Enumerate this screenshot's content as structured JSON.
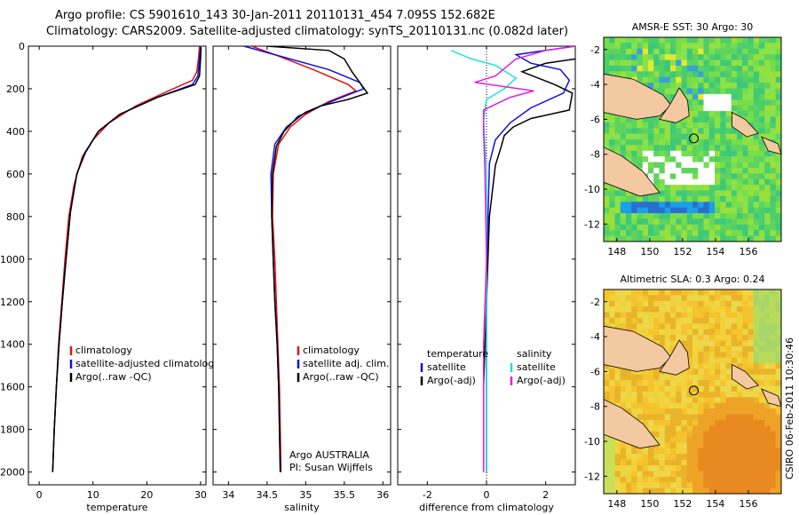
{
  "header": {
    "line1": "Argo profile: CS 5901610_143 30-Jan-2011 20110131_454 7.095S 152.682E",
    "line2": "Climatology: CARS2009. Satellite-adjusted climatology: synTS_20110131.nc (0.082d later)"
  },
  "side_note": "CSIRO 06-Feb-2011 10:30:46",
  "colors": {
    "climatology": "#e01010",
    "satellite": "#1010e0",
    "argo": "#000000",
    "sat_temp": "#20e0e0",
    "argo_adj_sal": "#e020e0"
  },
  "chart_data": [
    {
      "type": "line",
      "xlabel": "temperature",
      "xlim": [
        -2,
        31
      ],
      "xticks": [
        0,
        10,
        20,
        30
      ],
      "ylim": [
        0,
        2060
      ],
      "yticks": [
        0,
        200,
        400,
        600,
        800,
        1000,
        1200,
        1400,
        1600,
        1800,
        2000
      ],
      "legend": [
        "climatology",
        "satellite-adjusted climatology",
        "Argo(..raw -QC)"
      ],
      "series": [
        {
          "name": "climatology",
          "color": "#e01010",
          "points": [
            [
              29.8,
              0
            ],
            [
              29.6,
              60
            ],
            [
              29.3,
              120
            ],
            [
              28.5,
              160
            ],
            [
              24,
              210
            ],
            [
              18,
              280
            ],
            [
              13,
              360
            ],
            [
              10,
              440
            ],
            [
              8,
              520
            ],
            [
              6.5,
              650
            ],
            [
              5.5,
              800
            ],
            [
              4.8,
              1000
            ],
            [
              4.2,
              1200
            ],
            [
              3.6,
              1400
            ],
            [
              3.2,
              1600
            ],
            [
              2.8,
              1800
            ],
            [
              2.5,
              2000
            ]
          ]
        },
        {
          "name": "satellite-adjusted climatology",
          "color": "#1010e0",
          "points": [
            [
              30,
              0
            ],
            [
              29.8,
              60
            ],
            [
              29.5,
              140
            ],
            [
              28.5,
              180
            ],
            [
              22,
              240
            ],
            [
              15,
              320
            ],
            [
              11,
              400
            ],
            [
              8.5,
              500
            ],
            [
              7,
              600
            ],
            [
              5.8,
              780
            ],
            [
              5,
              1000
            ],
            [
              4.3,
              1200
            ],
            [
              3.7,
              1400
            ],
            [
              3.2,
              1600
            ],
            [
              2.8,
              1800
            ],
            [
              2.5,
              2000
            ]
          ]
        },
        {
          "name": "Argo(..raw -QC)",
          "color": "#000000",
          "points": [
            [
              30.1,
              5
            ],
            [
              30,
              60
            ],
            [
              29.8,
              140
            ],
            [
              29,
              180
            ],
            [
              22,
              240
            ],
            [
              15,
              320
            ],
            [
              11,
              400
            ],
            [
              8.6,
              500
            ],
            [
              7,
              600
            ],
            [
              5.8,
              780
            ],
            [
              5,
              1000
            ],
            [
              4.3,
              1200
            ],
            [
              3.7,
              1400
            ],
            [
              3.2,
              1600
            ],
            [
              2.8,
              1800
            ],
            [
              2.5,
              2000
            ]
          ]
        }
      ]
    },
    {
      "type": "line",
      "xlabel": "salinity",
      "xlim": [
        33.8,
        36.1
      ],
      "xticks": [
        34,
        34.5,
        35,
        35.5,
        36
      ],
      "ylim": [
        0,
        2060
      ],
      "yticks": [
        0,
        200,
        400,
        600,
        800,
        1000,
        1200,
        1400,
        1600,
        1800,
        2000
      ],
      "legend": [
        "climatology",
        "satellite adj. clim.",
        "Argo(..raw -QC)"
      ],
      "note_lines": [
        "Argo AUSTRALIA",
        "PI: Susan Wijffels"
      ],
      "series": [
        {
          "name": "climatology",
          "color": "#e01010",
          "points": [
            [
              34.3,
              0
            ],
            [
              34.6,
              40
            ],
            [
              35.1,
              110
            ],
            [
              35.55,
              180
            ],
            [
              35.65,
              210
            ],
            [
              35.3,
              260
            ],
            [
              35,
              320
            ],
            [
              34.8,
              380
            ],
            [
              34.65,
              460
            ],
            [
              34.58,
              600
            ],
            [
              34.57,
              800
            ],
            [
              34.6,
              1000
            ],
            [
              34.62,
              1200
            ],
            [
              34.64,
              1400
            ],
            [
              34.66,
              1600
            ],
            [
              34.67,
              1800
            ],
            [
              34.68,
              2000
            ]
          ]
        },
        {
          "name": "satellite adj. clim.",
          "color": "#1010e0",
          "points": [
            [
              34.2,
              0
            ],
            [
              34.6,
              40
            ],
            [
              35.3,
              110
            ],
            [
              35.7,
              170
            ],
            [
              35.75,
              200
            ],
            [
              35.4,
              250
            ],
            [
              35,
              310
            ],
            [
              34.75,
              380
            ],
            [
              34.6,
              460
            ],
            [
              34.55,
              600
            ],
            [
              34.56,
              800
            ],
            [
              34.58,
              1000
            ],
            [
              34.6,
              1200
            ],
            [
              34.63,
              1400
            ],
            [
              34.65,
              1600
            ],
            [
              34.66,
              1800
            ],
            [
              34.67,
              2000
            ]
          ]
        },
        {
          "name": "Argo(..raw -QC)",
          "color": "#000000",
          "points": [
            [
              34.5,
              0
            ],
            [
              35.3,
              20
            ],
            [
              35.5,
              60
            ],
            [
              35.6,
              120
            ],
            [
              35.7,
              170
            ],
            [
              35.8,
              220
            ],
            [
              35.55,
              250
            ],
            [
              35.2,
              280
            ],
            [
              34.9,
              330
            ],
            [
              34.72,
              400
            ],
            [
              34.62,
              470
            ],
            [
              34.57,
              600
            ],
            [
              34.56,
              800
            ],
            [
              34.58,
              1000
            ],
            [
              34.6,
              1200
            ],
            [
              34.63,
              1400
            ],
            [
              34.65,
              1600
            ],
            [
              34.66,
              1800
            ],
            [
              34.67,
              2000
            ]
          ]
        }
      ]
    },
    {
      "type": "line",
      "xlabel": "difference from climatology",
      "xlim": [
        -3,
        3
      ],
      "xticks": [
        -2,
        0,
        2
      ],
      "ylim": [
        0,
        2060
      ],
      "yticks": [
        0,
        200,
        400,
        600,
        800,
        1000,
        1200,
        1400,
        1600,
        1800,
        2000
      ],
      "legend": [
        "temperature",
        "satellite",
        "Argo(-adj)",
        "salinity",
        "satellite",
        "Argo(-adj)"
      ],
      "series": [
        {
          "name": "temperature satellite",
          "color": "#1010e0",
          "points": [
            [
              3,
              0
            ],
            [
              2,
              20
            ],
            [
              1,
              40
            ],
            [
              1.5,
              80
            ],
            [
              2.5,
              110
            ],
            [
              2.8,
              160
            ],
            [
              2.6,
              220
            ],
            [
              1.5,
              290
            ],
            [
              0.8,
              360
            ],
            [
              0.3,
              440
            ],
            [
              0.1,
              550
            ],
            [
              0.05,
              800
            ],
            [
              0,
              1200
            ],
            [
              0,
              2000
            ]
          ]
        },
        {
          "name": "temperature Argo(-adj)",
          "color": "#000000",
          "points": [
            [
              3,
              60
            ],
            [
              2,
              80
            ],
            [
              1.2,
              120
            ],
            [
              2.3,
              180
            ],
            [
              2.9,
              220
            ],
            [
              2.8,
              300
            ],
            [
              1.5,
              340
            ],
            [
              0.9,
              380
            ],
            [
              0.6,
              420
            ],
            [
              0.5,
              470
            ],
            [
              0.3,
              560
            ],
            [
              0.1,
              800
            ],
            [
              0,
              1200
            ],
            [
              -0.1,
              1600
            ],
            [
              -0.1,
              2000
            ]
          ]
        },
        {
          "name": "salinity satellite",
          "color": "#20e0e0",
          "points": [
            [
              -1.2,
              20
            ],
            [
              -0.5,
              60
            ],
            [
              0.3,
              90
            ],
            [
              1,
              150
            ],
            [
              0.6,
              200
            ],
            [
              0,
              250
            ],
            [
              -0.1,
              350
            ],
            [
              0,
              600
            ],
            [
              0,
              1000
            ],
            [
              0,
              1400
            ],
            [
              0,
              2000
            ]
          ]
        },
        {
          "name": "salinity Argo(-adj)",
          "color": "#e020e0",
          "points": [
            [
              3,
              0
            ],
            [
              2,
              20
            ],
            [
              1,
              60
            ],
            [
              0.3,
              140
            ],
            [
              -0.4,
              170
            ],
            [
              1.6,
              210
            ],
            [
              0.8,
              240
            ],
            [
              -0.1,
              300
            ],
            [
              -0.1,
              400
            ],
            [
              -0.05,
              600
            ],
            [
              0,
              1000
            ],
            [
              -0.1,
              1400
            ],
            [
              -0.1,
              2000
            ]
          ]
        }
      ]
    },
    {
      "type": "heatmap",
      "title": "AMSR-E SST: 30 Argo: 30",
      "xticks": [
        148,
        150,
        152,
        154,
        156
      ],
      "yticks": [
        -2,
        -4,
        -6,
        -8,
        -10,
        -12
      ],
      "marker_lon": 152.682,
      "marker_lat": -7.095
    },
    {
      "type": "heatmap",
      "title": "Altimetric SLA: 0.3 Argo: 0.24",
      "xticks": [
        148,
        150,
        152,
        154,
        156
      ],
      "yticks": [
        -2,
        -4,
        -6,
        -8,
        -10,
        -12
      ],
      "marker_lon": 152.682,
      "marker_lat": -7.095
    }
  ]
}
